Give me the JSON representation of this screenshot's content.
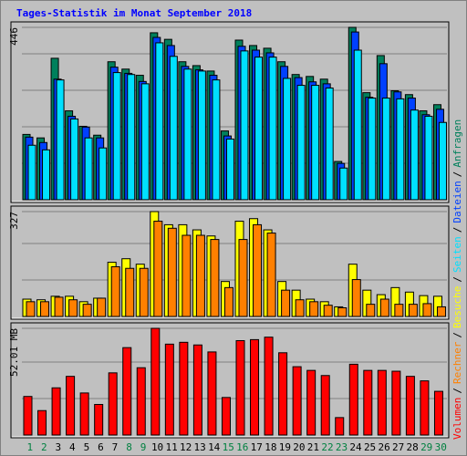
{
  "chart_data": [
    {
      "type": "bar",
      "title": "Tages-Statistik im Monat September 2018",
      "categories": [
        "1",
        "2",
        "3",
        "4",
        "5",
        "6",
        "7",
        "8",
        "9",
        "10",
        "11",
        "12",
        "13",
        "14",
        "15",
        "16",
        "17",
        "18",
        "19",
        "20",
        "21",
        "22",
        "23",
        "24",
        "25",
        "26",
        "27",
        "28",
        "29",
        "30"
      ],
      "category_colors": [
        "#008040",
        "#008040",
        "#000000",
        "#000000",
        "#000000",
        "#000000",
        "#000000",
        "#008040",
        "#008040",
        "#000000",
        "#000000",
        "#000000",
        "#000000",
        "#000000",
        "#008040",
        "#008040",
        "#000000",
        "#000000",
        "#000000",
        "#000000",
        "#000000",
        "#008040",
        "#008040",
        "#000000",
        "#000000",
        "#000000",
        "#000000",
        "#000000",
        "#008040",
        "#008040"
      ],
      "legend_separator": "/",
      "ylim": [
        0,
        446
      ],
      "yticks": [
        446
      ],
      "series": [
        {
          "name": "Anfragen",
          "color": "#00805c",
          "values": [
            169,
            160,
            366,
            230,
            190,
            167,
            357,
            338,
            322,
            432,
            415,
            357,
            347,
            333,
            178,
            413,
            399,
            392,
            357,
            324,
            319,
            312,
            99,
            446,
            277,
            373,
            282,
            272,
            230,
            246
          ]
        },
        {
          "name": "Dateien",
          "color": "#0040ff",
          "values": [
            162,
            148,
            312,
            216,
            188,
            160,
            343,
            327,
            306,
            420,
            399,
            345,
            336,
            322,
            165,
            397,
            387,
            380,
            345,
            316,
            305,
            300,
            94,
            434,
            265,
            352,
            279,
            263,
            220,
            234
          ]
        },
        {
          "name": "Seiten",
          "color": "#00e0ff",
          "values": [
            141,
            129,
            310,
            209,
            160,
            134,
            329,
            324,
            300,
            406,
            371,
            338,
            333,
            310,
            157,
            385,
            369,
            369,
            314,
            296,
            296,
            289,
            82,
            387,
            263,
            263,
            261,
            232,
            216,
            200
          ]
        }
      ]
    },
    {
      "type": "bar",
      "ylim": [
        0,
        327
      ],
      "yticks": [
        327
      ],
      "series": [
        {
          "name": "Besuche",
          "color": "#ffff00",
          "values": [
            54,
            52,
            63,
            63,
            46,
            57,
            169,
            180,
            163,
            327,
            286,
            286,
            270,
            251,
            109,
            297,
            305,
            270,
            109,
            82,
            54,
            46,
            30,
            163,
            82,
            68,
            90,
            76,
            65,
            63
          ]
        },
        {
          "name": "Rechner",
          "color": "#ff8000",
          "values": [
            46,
            46,
            60,
            52,
            38,
            57,
            155,
            150,
            150,
            297,
            275,
            253,
            253,
            240,
            90,
            240,
            286,
            260,
            82,
            52,
            46,
            35,
            27,
            115,
            38,
            54,
            38,
            38,
            40,
            30
          ]
        }
      ]
    },
    {
      "type": "bar",
      "ylim": [
        0,
        52.01
      ],
      "yticks": [
        {
          "value": 52.01,
          "label": "52.01 MB"
        }
      ],
      "series": [
        {
          "name": "Volumen",
          "color": "#ff0000",
          "values": [
            18.8,
            11.9,
            23.0,
            28.6,
            20.5,
            14.9,
            30.3,
            42.6,
            32.8,
            52.0,
            44.3,
            45.2,
            43.9,
            40.5,
            18.3,
            46.0,
            46.5,
            47.7,
            40.1,
            33.3,
            31.5,
            29.0,
            8.5,
            34.5,
            31.5,
            31.5,
            31.1,
            28.6,
            26.4,
            21.3
          ]
        }
      ]
    }
  ]
}
